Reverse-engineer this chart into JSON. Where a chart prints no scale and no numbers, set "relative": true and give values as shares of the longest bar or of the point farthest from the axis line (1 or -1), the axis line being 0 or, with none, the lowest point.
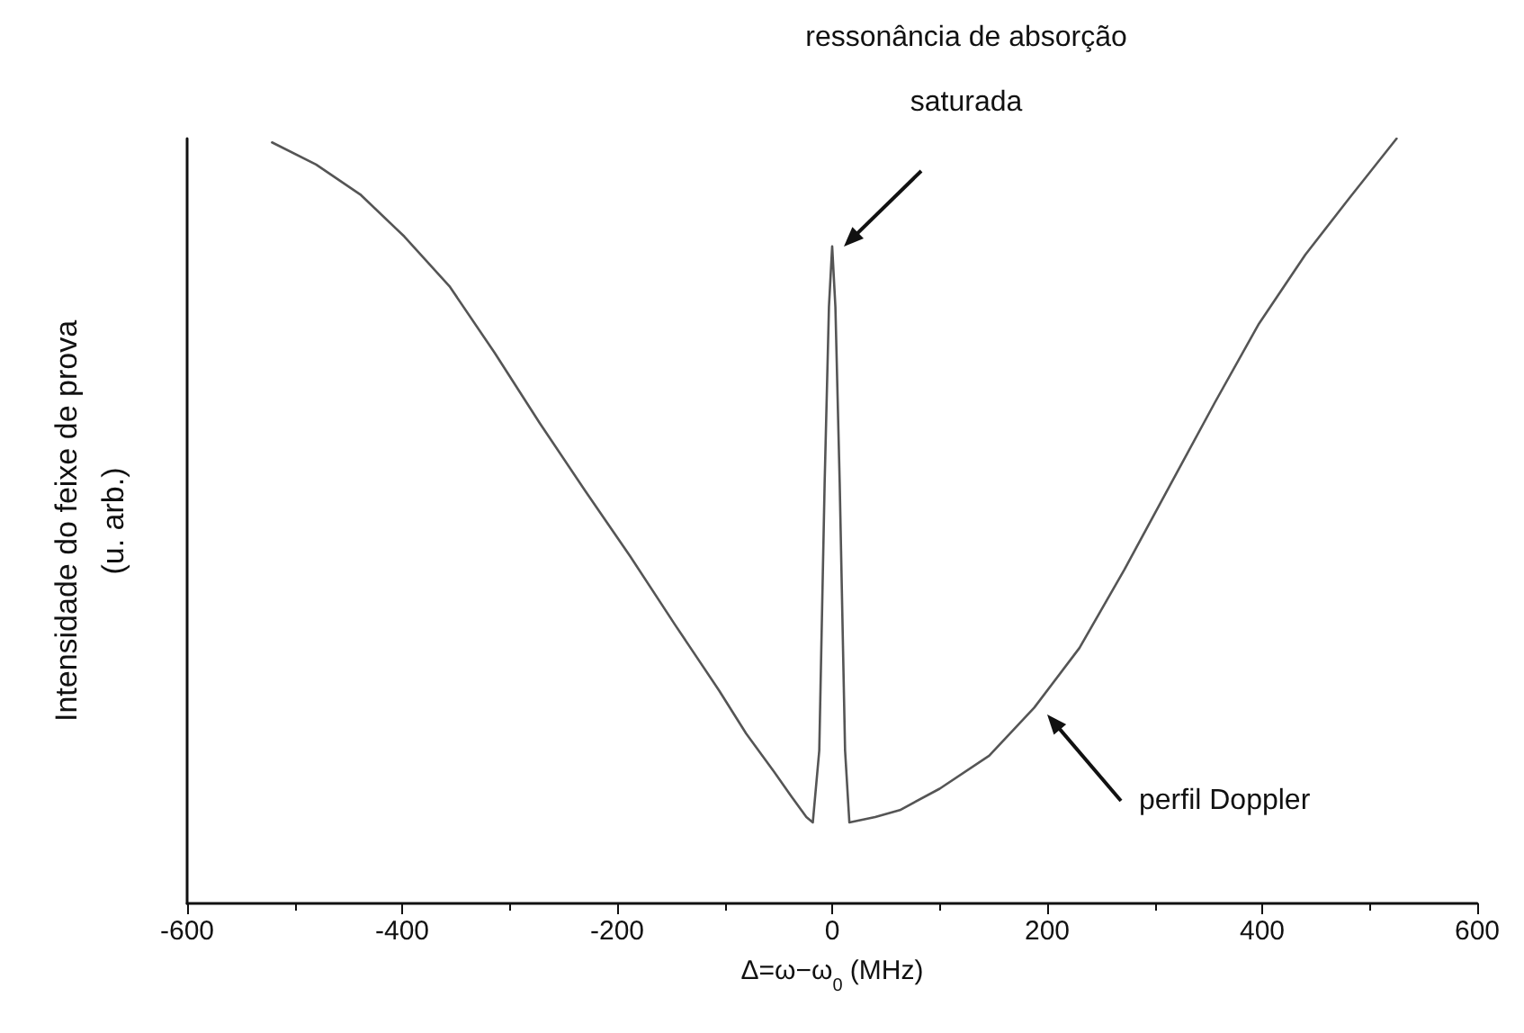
{
  "chart_data": {
    "type": "line",
    "relative": true,
    "xlabel": "Δ=ω−ω$_{0}$ (MHz)",
    "ylabel": "Intensidade do feixe de prova\n(u. arb.)",
    "xlim": [
      -600,
      600
    ],
    "xticks": [
      -600,
      -400,
      -200,
      0,
      200,
      400,
      600
    ],
    "grid": false,
    "marker": "none",
    "line_style": "solid",
    "x": [
      -521,
      -480,
      -439,
      -398,
      -356,
      -314,
      -272,
      -230,
      -188,
      -146,
      -105,
      -80,
      -54,
      -38,
      -24,
      -18,
      -12,
      -7,
      -3,
      0,
      3,
      7,
      12,
      16,
      23,
      40,
      63,
      100,
      146,
      188,
      230,
      272,
      314,
      356,
      397,
      440,
      481,
      525
    ],
    "series": [
      {
        "color": "#555555",
        "values": [
          0.995,
          0.966,
          0.927,
          0.872,
          0.807,
          0.72,
          0.628,
          0.54,
          0.454,
          0.364,
          0.278,
          0.222,
          0.172,
          0.14,
          0.113,
          0.106,
          0.2,
          0.55,
          0.78,
          0.859,
          0.78,
          0.55,
          0.2,
          0.106,
          0.108,
          0.113,
          0.122,
          0.15,
          0.193,
          0.256,
          0.334,
          0.437,
          0.546,
          0.655,
          0.758,
          0.848,
          0.922,
          1.0
        ]
      }
    ],
    "annotations": [
      "ressonância de absorção\nsaturada",
      "perfil Doppler"
    ]
  }
}
